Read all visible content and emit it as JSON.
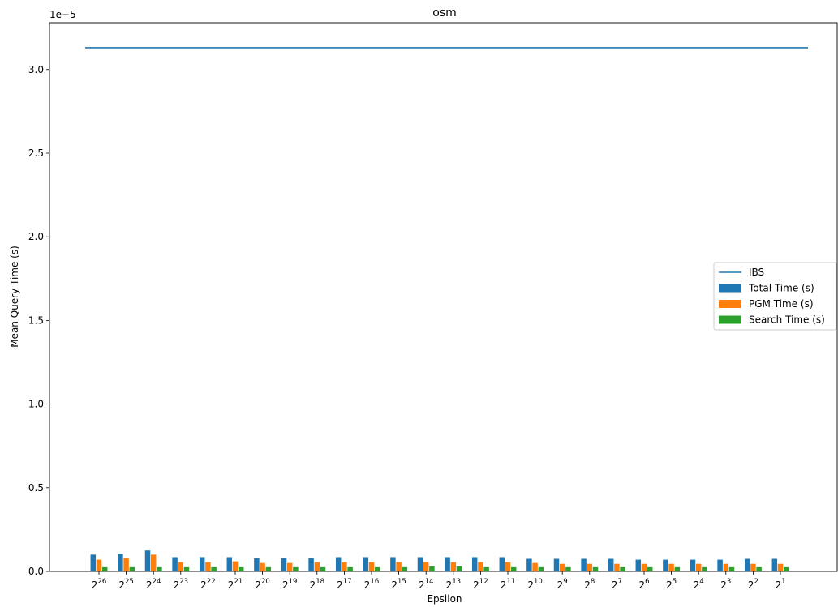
{
  "chart_data": {
    "type": "bar",
    "title": "osm",
    "xlabel": "Epsilon",
    "ylabel": "Mean Query Time (s)",
    "y_offset_label": "1e−5",
    "y_scale_note": "values in units of 1e-5 seconds",
    "ylim": [
      0,
      3.28
    ],
    "yticks": [
      "0.0",
      "0.5",
      "1.0",
      "1.5",
      "2.0",
      "2.5",
      "3.0"
    ],
    "grid": false,
    "legend_position": "center-right",
    "categories": [
      {
        "base": "2",
        "exp": "26"
      },
      {
        "base": "2",
        "exp": "25"
      },
      {
        "base": "2",
        "exp": "24"
      },
      {
        "base": "2",
        "exp": "23"
      },
      {
        "base": "2",
        "exp": "22"
      },
      {
        "base": "2",
        "exp": "21"
      },
      {
        "base": "2",
        "exp": "20"
      },
      {
        "base": "2",
        "exp": "19"
      },
      {
        "base": "2",
        "exp": "18"
      },
      {
        "base": "2",
        "exp": "17"
      },
      {
        "base": "2",
        "exp": "16"
      },
      {
        "base": "2",
        "exp": "15"
      },
      {
        "base": "2",
        "exp": "14"
      },
      {
        "base": "2",
        "exp": "13"
      },
      {
        "base": "2",
        "exp": "12"
      },
      {
        "base": "2",
        "exp": "11"
      },
      {
        "base": "2",
        "exp": "10"
      },
      {
        "base": "2",
        "exp": "9"
      },
      {
        "base": "2",
        "exp": "8"
      },
      {
        "base": "2",
        "exp": "7"
      },
      {
        "base": "2",
        "exp": "6"
      },
      {
        "base": "2",
        "exp": "5"
      },
      {
        "base": "2",
        "exp": "4"
      },
      {
        "base": "2",
        "exp": "3"
      },
      {
        "base": "2",
        "exp": "2"
      },
      {
        "base": "2",
        "exp": "1"
      }
    ],
    "line": {
      "name": "IBS",
      "value": 3.13,
      "color": "#1f77b4"
    },
    "series": [
      {
        "name": "Total Time (s)",
        "color": "#1f77b4",
        "values": [
          0.1,
          0.105,
          0.125,
          0.085,
          0.085,
          0.085,
          0.08,
          0.08,
          0.08,
          0.085,
          0.085,
          0.085,
          0.085,
          0.085,
          0.085,
          0.085,
          0.075,
          0.075,
          0.075,
          0.075,
          0.07,
          0.07,
          0.07,
          0.07,
          0.075,
          0.075
        ]
      },
      {
        "name": "PGM Time (s)",
        "color": "#ff7f0e",
        "values": [
          0.07,
          0.08,
          0.1,
          0.055,
          0.055,
          0.06,
          0.05,
          0.05,
          0.055,
          0.055,
          0.055,
          0.055,
          0.055,
          0.055,
          0.055,
          0.055,
          0.05,
          0.045,
          0.045,
          0.045,
          0.045,
          0.045,
          0.045,
          0.045,
          0.045,
          0.045
        ]
      },
      {
        "name": "Search Time (s)",
        "color": "#2ca02c",
        "values": [
          0.025,
          0.025,
          0.025,
          0.025,
          0.025,
          0.025,
          0.025,
          0.025,
          0.025,
          0.025,
          0.025,
          0.025,
          0.03,
          0.03,
          0.025,
          0.025,
          0.025,
          0.025,
          0.025,
          0.025,
          0.025,
          0.025,
          0.025,
          0.025,
          0.025,
          0.025
        ]
      }
    ]
  }
}
